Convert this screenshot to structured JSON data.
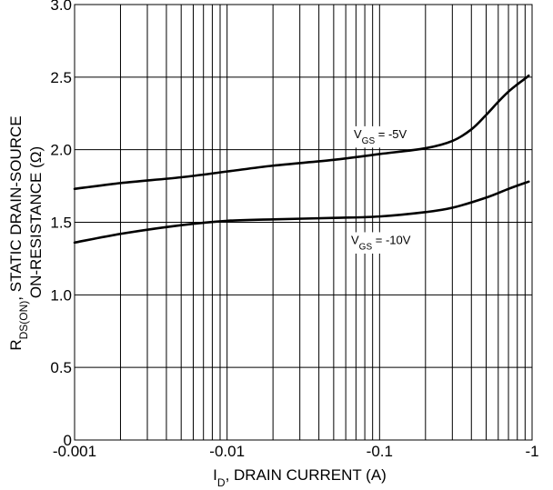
{
  "chart_data": {
    "type": "line",
    "title": "",
    "xscale": "log",
    "xlim": [
      -0.001,
      -1
    ],
    "ylim": [
      0,
      3.0
    ],
    "grid": true,
    "legend": "none",
    "xticks": [
      "-0.001",
      "-0.01",
      "-0.1",
      "-1"
    ],
    "yticks": [
      "0",
      "0.5",
      "1.0",
      "1.5",
      "2.0",
      "2.5",
      "3.0"
    ],
    "xlabel": {
      "pre": "I",
      "sub": "D",
      "post": ", DRAIN CURRENT (A)"
    },
    "ylabel": {
      "line1_pre": "R",
      "line1_sub": "DS(ON)",
      "line1_post": ", STATIC DRAIN-SOURCE",
      "line2": "ON-RESISTANCE (Ω)"
    },
    "series": [
      {
        "label_pre": "V",
        "label_sub": "GS",
        "label_post": " = -5V",
        "x": [
          -0.001,
          -0.002,
          -0.005,
          -0.01,
          -0.02,
          -0.05,
          -0.1,
          -0.2,
          -0.3,
          -0.4,
          -0.5,
          -0.6,
          -0.7,
          -0.8,
          -0.9,
          -0.95
        ],
        "y": [
          1.73,
          1.77,
          1.81,
          1.85,
          1.89,
          1.93,
          1.97,
          2.01,
          2.06,
          2.14,
          2.24,
          2.33,
          2.4,
          2.45,
          2.49,
          2.51
        ]
      },
      {
        "label_pre": "V",
        "label_sub": "GS",
        "label_post": " = -10V",
        "x": [
          -0.001,
          -0.002,
          -0.005,
          -0.01,
          -0.02,
          -0.05,
          -0.1,
          -0.2,
          -0.3,
          -0.5,
          -0.7,
          -0.95
        ],
        "y": [
          1.36,
          1.42,
          1.48,
          1.51,
          1.52,
          1.53,
          1.54,
          1.57,
          1.6,
          1.67,
          1.73,
          1.78
        ]
      }
    ],
    "colors": {
      "line": "#000000",
      "grid": "#000000",
      "background": "#ffffff"
    }
  }
}
